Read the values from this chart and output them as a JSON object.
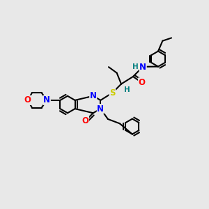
{
  "bg_color": "#e8e8e8",
  "atom_colors": {
    "C": "#000000",
    "N": "#0000ff",
    "O": "#ff0000",
    "S": "#cccc00",
    "H_label": "#008080"
  },
  "bond_color": "#000000",
  "bond_width": 1.5,
  "font_size_atoms": 8.5
}
